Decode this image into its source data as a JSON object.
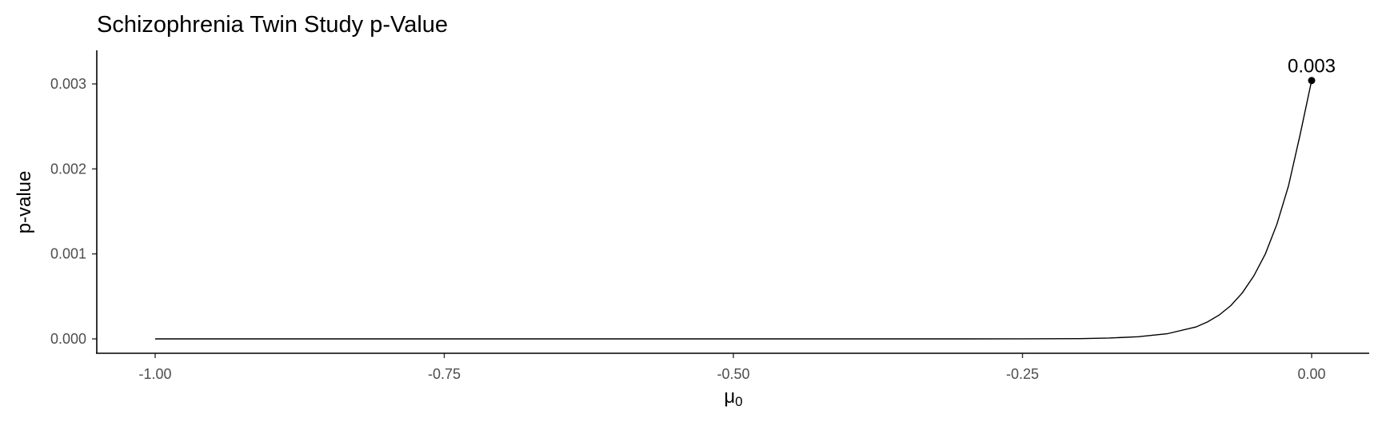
{
  "chart_data": {
    "type": "line",
    "title": "Schizophrenia Twin Study p-Value",
    "xlabel": "μ",
    "xlabel_subscript": "0",
    "ylabel": "p-value",
    "xlim": [
      -1.0,
      0.0
    ],
    "ylim": [
      0.0,
      0.003
    ],
    "x_ticks": [
      {
        "value": -1.0,
        "label": "-1.00"
      },
      {
        "value": -0.75,
        "label": "-0.75"
      },
      {
        "value": -0.5,
        "label": "-0.50"
      },
      {
        "value": -0.25,
        "label": "-0.25"
      },
      {
        "value": 0.0,
        "label": "0.00"
      }
    ],
    "y_ticks": [
      {
        "value": 0.0,
        "label": "0.000"
      },
      {
        "value": 0.001,
        "label": "0.001"
      },
      {
        "value": 0.002,
        "label": "0.002"
      },
      {
        "value": 0.003,
        "label": "0.003"
      }
    ],
    "grid": false,
    "legend": "none",
    "series": [
      {
        "x": [
          -1.0,
          -0.9,
          -0.8,
          -0.7,
          -0.6,
          -0.5,
          -0.4,
          -0.3,
          -0.25,
          -0.2,
          -0.175,
          -0.15,
          -0.125,
          -0.1,
          -0.09,
          -0.08,
          -0.07,
          -0.06,
          -0.05,
          -0.04,
          -0.03,
          -0.02,
          -0.01,
          0.0
        ],
        "y": [
          0.0,
          0.0,
          0.0,
          0.0,
          0.0,
          0.0,
          0.0,
          0.0,
          1e-06,
          3e-06,
          1e-05,
          2.5e-05,
          6e-05,
          0.00014,
          0.0002,
          0.00028,
          0.00039,
          0.00054,
          0.00074,
          0.001,
          0.00135,
          0.0018,
          0.0024,
          0.00304
        ]
      }
    ],
    "highlight_point": {
      "x": 0.0,
      "y": 0.00304,
      "label": "0.003"
    }
  }
}
